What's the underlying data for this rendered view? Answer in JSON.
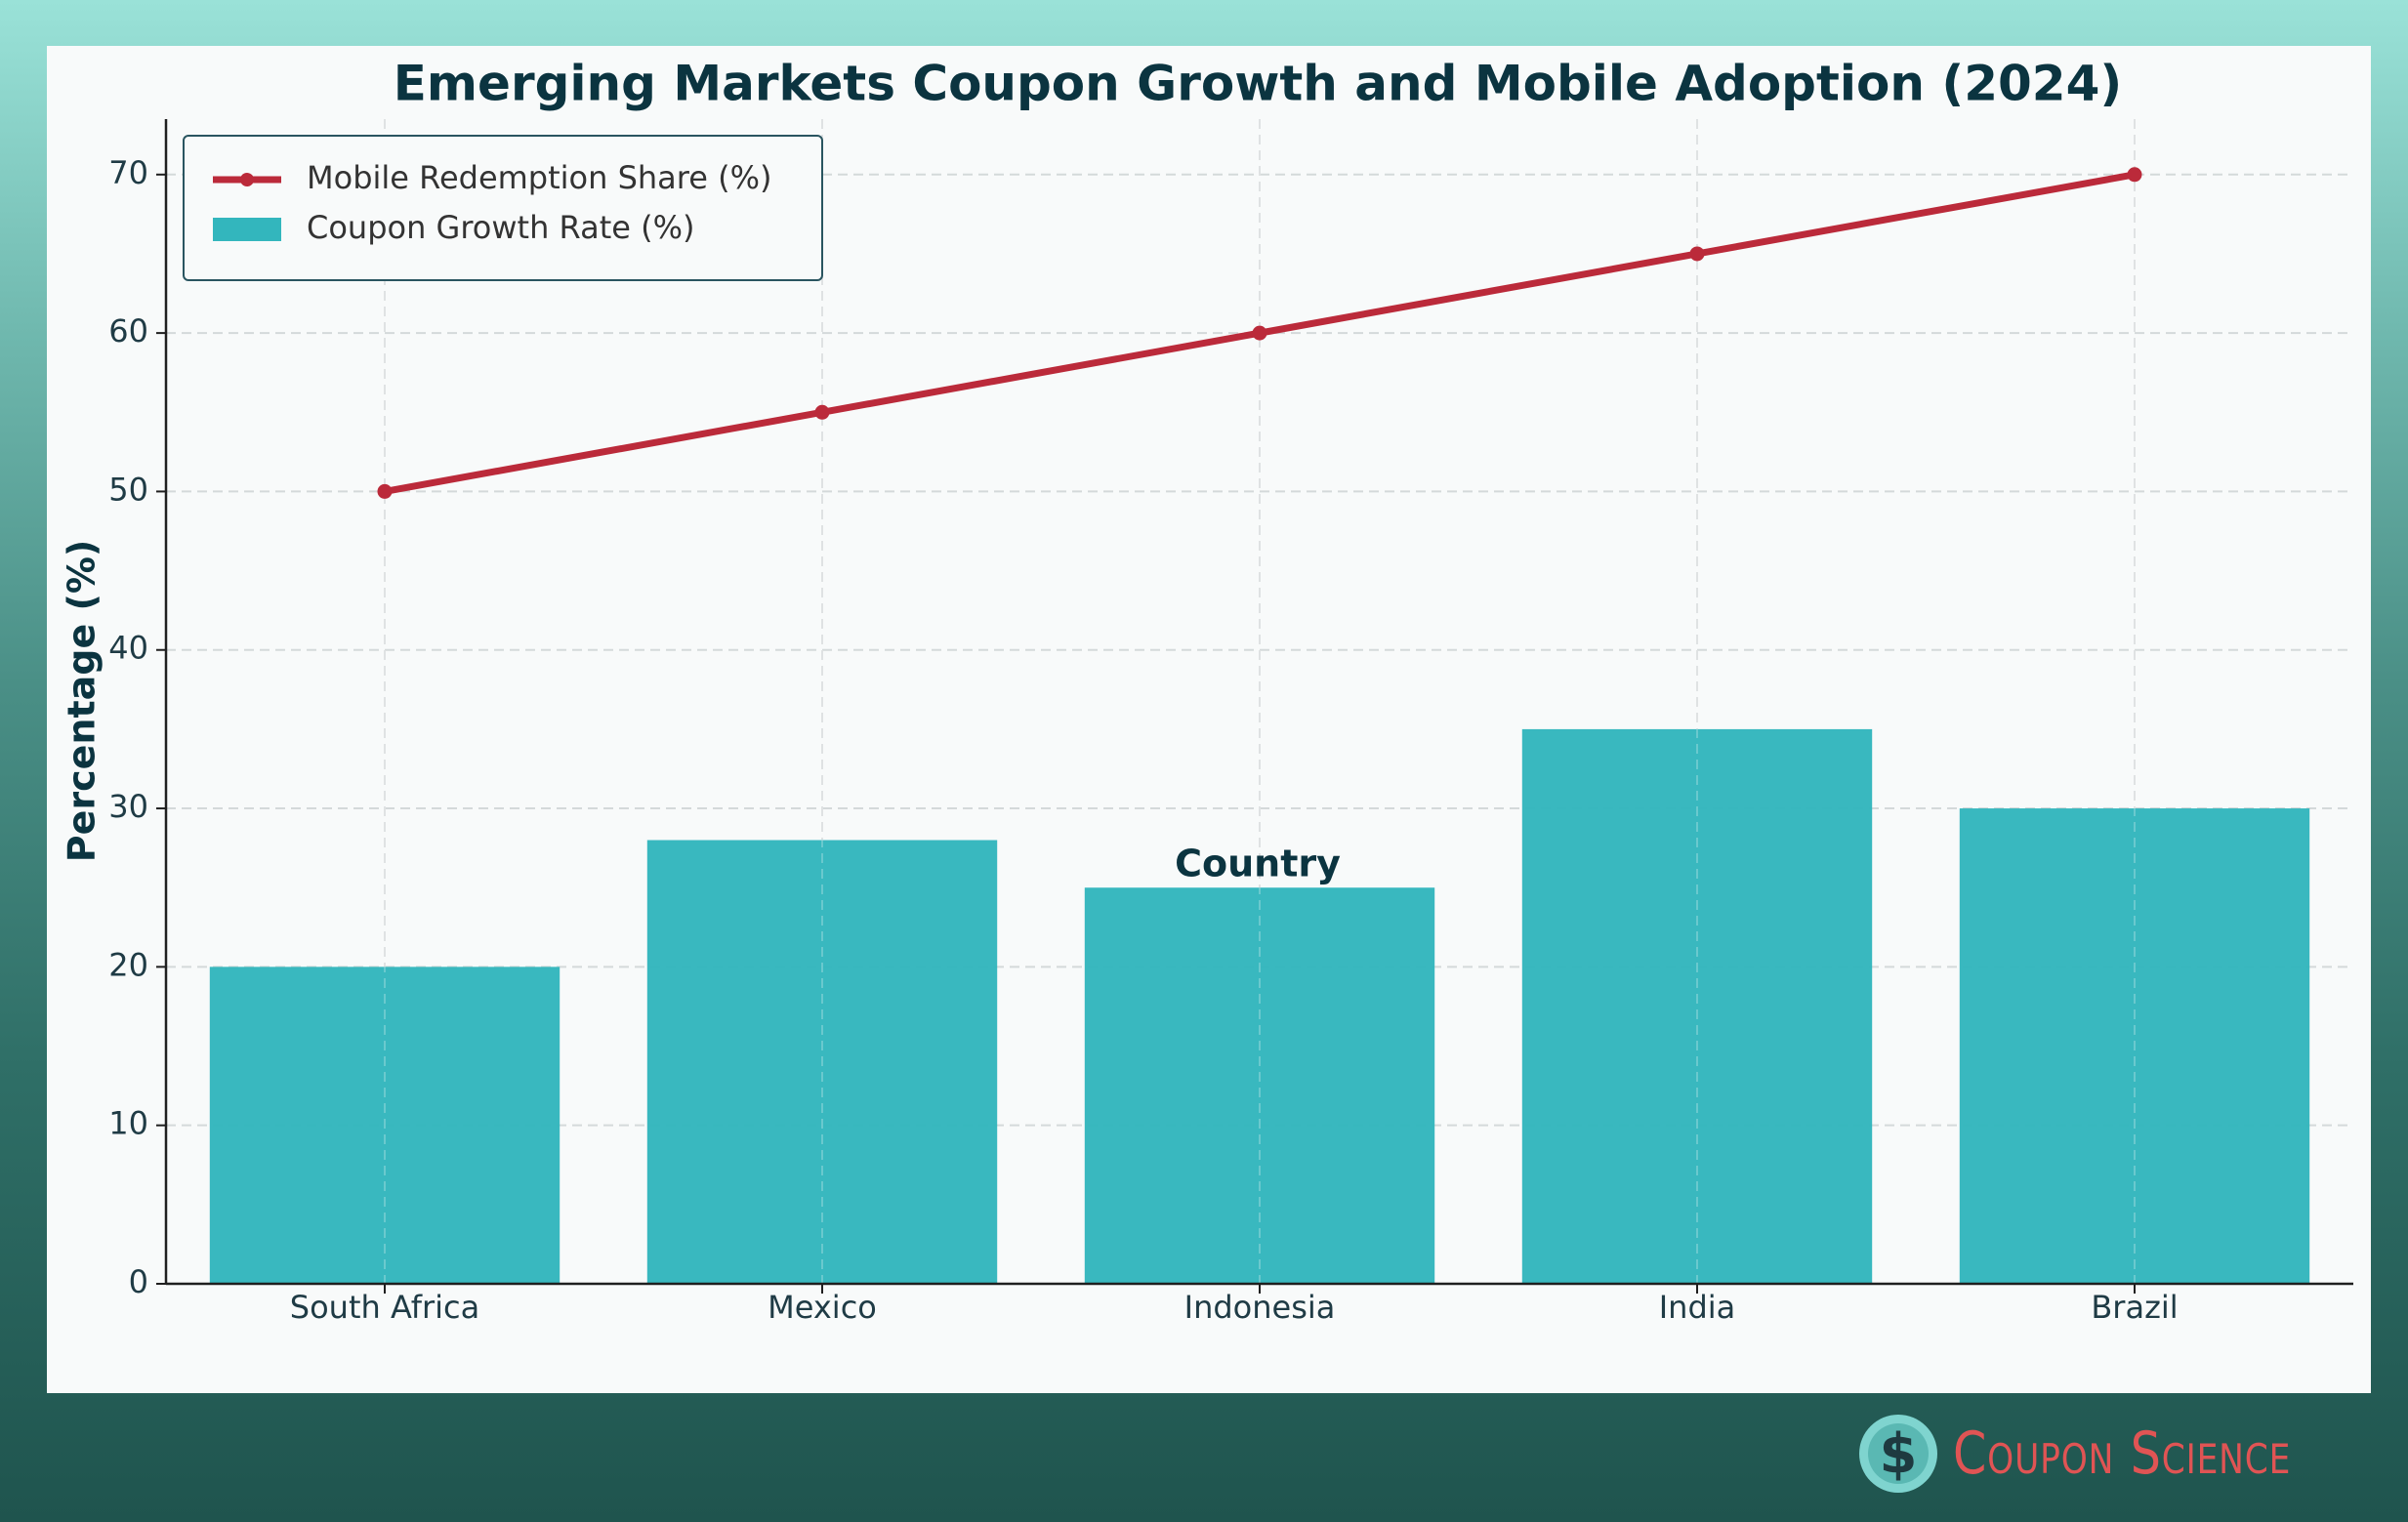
{
  "chart_data": {
    "type": "bar",
    "title": "Emerging Markets Coupon Growth and Mobile Adoption (2024)",
    "xlabel": "Country",
    "ylabel": "Percentage (%)",
    "categories": [
      "South Africa",
      "Mexico",
      "Indonesia",
      "India",
      "Brazil"
    ],
    "ylim": [
      0,
      73.5
    ],
    "yticks": [
      0,
      10,
      20,
      30,
      40,
      50,
      60,
      70
    ],
    "grid": true,
    "legend_position": "top-left",
    "series": [
      {
        "name": "Coupon Growth Rate (%)",
        "type": "bar",
        "color": "#33b6bd",
        "values": [
          20,
          28,
          25,
          35,
          30
        ]
      },
      {
        "name": "Mobile Redemption Share (%)",
        "type": "line",
        "color": "#bb2a3a",
        "values": [
          50,
          55,
          60,
          65,
          70
        ]
      }
    ]
  },
  "brand": {
    "name": "Coupon Science",
    "icon": "dollar-coin-icon",
    "color": "#e05454"
  }
}
